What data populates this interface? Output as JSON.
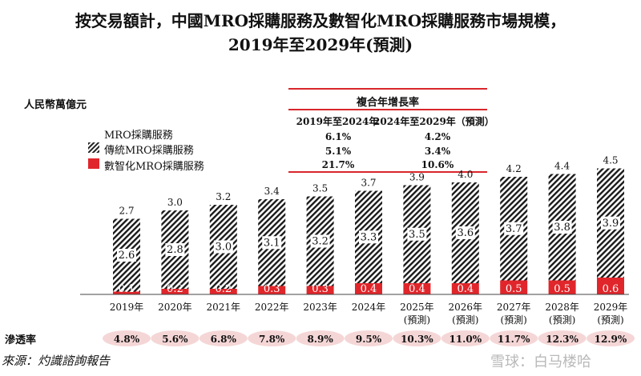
{
  "title_line1": "按交易額計，中國MRO採購服務及數智化MRO採購服務市場規模，",
  "title_line2": "2019年至2029年(預測)",
  "unit": "人民幣萬億元",
  "cagr": {
    "header": "複合年增長率",
    "col1": "2019年至2024年",
    "col2": "2024年至2029年（預測）",
    "rows": [
      {
        "a": "6.1%",
        "b": "4.2%"
      },
      {
        "a": "5.1%",
        "b": "3.4%"
      },
      {
        "a": "21.7%",
        "b": "10.6%"
      }
    ]
  },
  "legend": {
    "total": "MRO採購服務",
    "traditional": "傳統MRO採購服務",
    "digital": "數智化MRO採購服務"
  },
  "penetration_label": "滲透率",
  "source": "來源：灼識諮詢報告",
  "watermark": "雪球：白马楼哈",
  "colors": {
    "digital": "#e0262b",
    "accent_line": "#d9262b",
    "pill": "#f5d6d6"
  },
  "chart_data": {
    "type": "bar",
    "stacked": true,
    "categories": [
      "2019年",
      "2020年",
      "2021年",
      "2022年",
      "2023年",
      "2024年",
      "2025年",
      "2026年",
      "2027年",
      "2028年",
      "2029年"
    ],
    "category_sublabels": [
      "",
      "",
      "",
      "",
      "",
      "",
      "(預測)",
      "(預測)",
      "(預測)",
      "(預測)",
      "(預測)"
    ],
    "series": [
      {
        "name": "數智化MRO採購服務",
        "values": [
          0.1,
          0.2,
          0.2,
          0.3,
          0.3,
          0.4,
          0.4,
          0.4,
          0.5,
          0.5,
          0.6
        ]
      },
      {
        "name": "傳統MRO採購服務",
        "values": [
          2.6,
          2.8,
          3.0,
          3.1,
          3.2,
          3.3,
          3.5,
          3.6,
          3.7,
          3.8,
          3.9
        ]
      }
    ],
    "totals": [
      2.7,
      3.0,
      3.2,
      3.4,
      3.5,
      3.7,
      3.9,
      4.0,
      4.2,
      4.4,
      4.5
    ],
    "penetration": [
      "4.8%",
      "5.6%",
      "6.8%",
      "7.8%",
      "8.9%",
      "9.5%",
      "10.3%",
      "11.0%",
      "11.7%",
      "12.3%",
      "12.9%"
    ],
    "ylabel": "人民幣萬億元",
    "ylim": [
      0,
      4.5
    ]
  }
}
